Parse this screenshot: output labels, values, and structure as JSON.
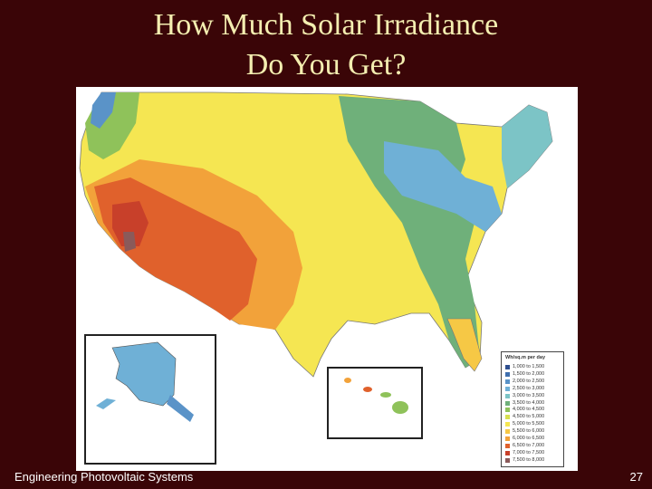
{
  "title_line1": "How Much Solar Irradiance",
  "title_line2": "Do You Get?",
  "footer_left": "Engineering Photovoltaic Systems",
  "page_number": "27",
  "legend": {
    "title": "Wh/sq.m per day",
    "entries": [
      {
        "label": "1,000 to 1,500",
        "color": "#2f4f8f"
      },
      {
        "label": "1,500 to 2,000",
        "color": "#3f6fae"
      },
      {
        "label": "2,000 to 2,500",
        "color": "#5a93c8"
      },
      {
        "label": "2,500 to 3,000",
        "color": "#6fb0d6"
      },
      {
        "label": "3,000 to 3,500",
        "color": "#7cc4c6"
      },
      {
        "label": "3,500 to 4,000",
        "color": "#6fb07a"
      },
      {
        "label": "4,000 to 4,500",
        "color": "#8fc25a"
      },
      {
        "label": "4,500 to 5,000",
        "color": "#d8e050"
      },
      {
        "label": "5,000 to 5,500",
        "color": "#f5e652"
      },
      {
        "label": "5,500 to 6,000",
        "color": "#f6c845"
      },
      {
        "label": "6,000 to 6,500",
        "color": "#f2a23a"
      },
      {
        "label": "6,500 to 7,000",
        "color": "#e0612c"
      },
      {
        "label": "7,000 to 7,500",
        "color": "#c8402a"
      },
      {
        "label": "7,500 to 8,000",
        "color": "#8a5a5a"
      }
    ]
  },
  "colors": {
    "background": "#3a0507",
    "title": "#f4eeb0",
    "panel": "#ffffff"
  }
}
